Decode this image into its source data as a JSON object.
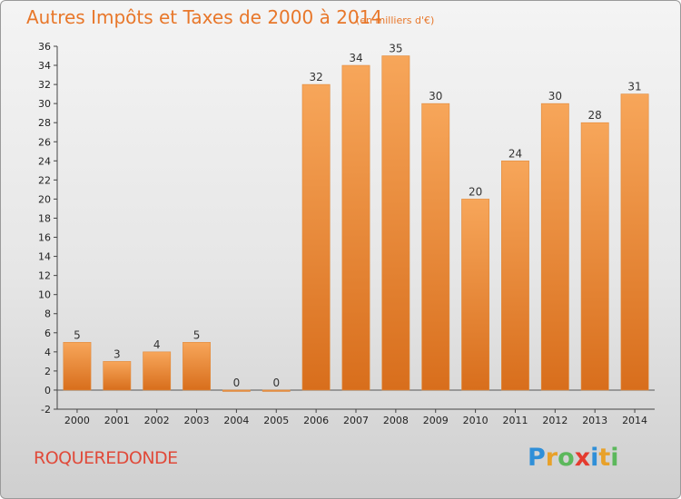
{
  "title": "Autres Impôts et Taxes de 2000 à 2014",
  "unit_note": "(en milliers d'€)",
  "location": "ROQUEREDONDE",
  "brand": {
    "letters": [
      "P",
      "r",
      "o",
      "x",
      "i",
      "t",
      "i"
    ],
    "colors": [
      "#2f8fd8",
      "#e8a12a",
      "#5cb85c",
      "#e43b2f",
      "#2f8fd8",
      "#e8a12a",
      "#5cb85c"
    ]
  },
  "colors": {
    "bar_light": "#f7a65a",
    "bar_dark": "#d86e1c",
    "title": "#e8772a",
    "location": "#e04a3a"
  },
  "chart_data": {
    "type": "bar",
    "title": "Autres Impôts et Taxes de 2000 à 2014",
    "subtitle": "(en milliers d'€)",
    "xlabel": "",
    "ylabel": "",
    "categories": [
      "2000",
      "2001",
      "2002",
      "2003",
      "2004",
      "2005",
      "2006",
      "2007",
      "2008",
      "2009",
      "2010",
      "2011",
      "2012",
      "2013",
      "2014"
    ],
    "values": [
      5,
      3,
      4,
      5,
      0,
      0,
      32,
      34,
      35,
      30,
      20,
      24,
      30,
      28,
      31
    ],
    "ylim": [
      -2,
      36
    ],
    "ytick_step": 2,
    "grid": false,
    "legend": "none"
  }
}
